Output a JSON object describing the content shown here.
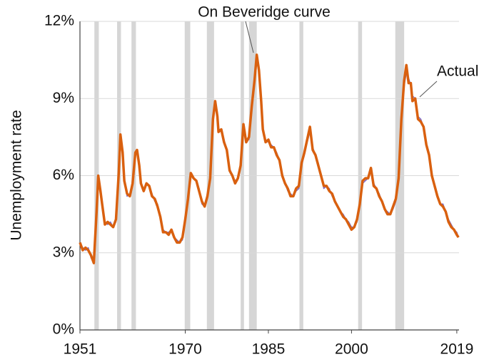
{
  "chart_data": {
    "type": "line",
    "ylabel": "Unemployment rate",
    "x": [
      1951.0,
      1951.5,
      1952.0,
      1952.5,
      1953.0,
      1953.5,
      1954.0,
      1954.3,
      1954.7,
      1955.0,
      1955.5,
      1956.0,
      1956.5,
      1957.0,
      1957.5,
      1958.0,
      1958.3,
      1958.7,
      1959.0,
      1959.5,
      1960.0,
      1960.5,
      1961.0,
      1961.3,
      1961.7,
      1962.0,
      1962.5,
      1963.0,
      1963.5,
      1964.0,
      1964.5,
      1965.0,
      1965.5,
      1966.0,
      1966.5,
      1967.0,
      1967.5,
      1968.0,
      1968.5,
      1969.0,
      1969.5,
      1970.0,
      1970.5,
      1971.0,
      1971.5,
      1972.0,
      1972.5,
      1973.0,
      1973.5,
      1974.0,
      1974.5,
      1975.0,
      1975.4,
      1975.8,
      1976.0,
      1976.5,
      1977.0,
      1977.5,
      1978.0,
      1978.5,
      1979.0,
      1979.5,
      1980.0,
      1980.5,
      1981.0,
      1981.5,
      1982.0,
      1982.5,
      1982.9,
      1983.3,
      1983.7,
      1984.0,
      1984.5,
      1985.0,
      1985.5,
      1986.0,
      1986.5,
      1987.0,
      1987.5,
      1988.0,
      1988.5,
      1989.0,
      1989.5,
      1990.0,
      1990.5,
      1991.0,
      1991.5,
      1992.0,
      1992.5,
      1993.0,
      1993.5,
      1994.0,
      1994.5,
      1995.0,
      1995.5,
      1996.0,
      1996.5,
      1997.0,
      1997.5,
      1998.0,
      1998.5,
      1999.0,
      1999.5,
      2000.0,
      2000.5,
      2001.0,
      2001.5,
      2002.0,
      2002.5,
      2003.0,
      2003.5,
      2004.0,
      2004.5,
      2005.0,
      2005.5,
      2006.0,
      2006.5,
      2007.0,
      2007.5,
      2008.0,
      2008.5,
      2009.0,
      2009.5,
      2009.9,
      2010.3,
      2010.7,
      2011.0,
      2011.5,
      2012.0,
      2012.5,
      2013.0,
      2013.5,
      2014.0,
      2014.5,
      2015.0,
      2015.5,
      2016.0,
      2016.5,
      2017.0,
      2017.5,
      2018.0,
      2018.5,
      2019.0,
      2019.3
    ],
    "series": [
      {
        "name": "Actual",
        "color": "#7b68c8",
        "width": 1.5,
        "values": [
          3.4,
          3.2,
          3.1,
          3.2,
          2.8,
          2.6,
          4.5,
          5.9,
          5.5,
          4.8,
          4.2,
          4.1,
          4.2,
          4.0,
          4.2,
          6.0,
          7.5,
          6.8,
          5.9,
          5.2,
          5.3,
          5.6,
          6.8,
          7.0,
          6.5,
          5.7,
          5.5,
          5.7,
          5.6,
          5.3,
          5.0,
          4.9,
          4.4,
          3.9,
          3.8,
          3.8,
          3.9,
          3.6,
          3.5,
          3.4,
          3.5,
          4.2,
          5.0,
          6.0,
          5.9,
          5.8,
          5.5,
          4.9,
          4.8,
          5.1,
          5.8,
          8.1,
          8.8,
          8.4,
          7.8,
          7.8,
          7.4,
          7.0,
          6.3,
          6.0,
          5.8,
          5.9,
          6.3,
          7.8,
          7.4,
          7.4,
          8.6,
          9.6,
          10.6,
          10.2,
          9.0,
          7.9,
          7.4,
          7.3,
          7.2,
          7.1,
          6.9,
          6.6,
          6.1,
          5.7,
          5.4,
          5.3,
          5.2,
          5.4,
          5.5,
          6.4,
          6.8,
          7.3,
          7.7,
          7.1,
          6.8,
          6.5,
          6.0,
          5.5,
          5.6,
          5.5,
          5.2,
          5.0,
          4.8,
          4.6,
          4.5,
          4.3,
          4.2,
          4.0,
          4.0,
          4.2,
          4.8,
          5.7,
          5.8,
          5.9,
          6.2,
          5.7,
          5.5,
          5.3,
          5.0,
          4.7,
          4.6,
          4.5,
          4.7,
          5.0,
          5.8,
          8.0,
          9.5,
          10.0,
          9.8,
          9.5,
          9.1,
          9.0,
          8.3,
          8.2,
          7.9,
          7.3,
          6.7,
          6.1,
          5.6,
          5.2,
          4.9,
          4.9,
          4.6,
          4.3,
          4.1,
          3.9,
          3.8,
          3.6
        ]
      },
      {
        "name": "On Beveridge curve",
        "color": "#d9600f",
        "width": 3.5,
        "values": [
          3.4,
          3.1,
          3.2,
          3.1,
          2.9,
          2.6,
          4.6,
          6.0,
          5.4,
          4.9,
          4.1,
          4.2,
          4.1,
          4.0,
          4.3,
          6.1,
          7.6,
          6.9,
          5.8,
          5.3,
          5.2,
          5.7,
          6.9,
          7.0,
          6.4,
          5.7,
          5.4,
          5.7,
          5.6,
          5.2,
          5.1,
          4.8,
          4.4,
          3.8,
          3.8,
          3.7,
          3.9,
          3.6,
          3.4,
          3.4,
          3.6,
          4.3,
          5.1,
          6.1,
          5.9,
          5.8,
          5.4,
          5.0,
          4.8,
          5.2,
          5.9,
          8.2,
          8.9,
          8.3,
          7.7,
          7.8,
          7.3,
          7.0,
          6.2,
          6.0,
          5.7,
          5.9,
          6.4,
          8.0,
          7.3,
          7.5,
          8.7,
          9.7,
          10.7,
          10.1,
          8.9,
          7.8,
          7.3,
          7.4,
          7.1,
          7.1,
          6.8,
          6.6,
          6.0,
          5.7,
          5.5,
          5.2,
          5.2,
          5.5,
          5.6,
          6.5,
          6.9,
          7.4,
          7.9,
          7.0,
          6.8,
          6.4,
          6.0,
          5.6,
          5.6,
          5.4,
          5.3,
          5.0,
          4.8,
          4.6,
          4.4,
          4.3,
          4.1,
          3.9,
          4.0,
          4.3,
          4.9,
          5.8,
          5.9,
          5.9,
          6.3,
          5.6,
          5.5,
          5.2,
          5.0,
          4.7,
          4.5,
          4.5,
          4.8,
          5.1,
          5.9,
          8.2,
          9.7,
          10.3,
          9.6,
          9.6,
          8.9,
          9.0,
          8.2,
          8.1,
          7.9,
          7.2,
          6.8,
          6.0,
          5.6,
          5.2,
          4.9,
          4.8,
          4.6,
          4.2,
          4.0,
          3.9,
          3.7,
          3.6
        ]
      }
    ],
    "shaded_periods": [
      [
        1953.6,
        1954.4
      ],
      [
        1957.7,
        1958.4
      ],
      [
        1960.3,
        1961.1
      ],
      [
        1969.9,
        1970.9
      ],
      [
        1973.9,
        1975.2
      ],
      [
        1980.0,
        1980.6
      ],
      [
        1981.5,
        1982.9
      ],
      [
        1990.6,
        1991.3
      ],
      [
        2001.2,
        2001.9
      ],
      [
        2007.9,
        2009.5
      ]
    ],
    "shade_color": "#d6d6d6",
    "xlim": [
      1951,
      2019.4
    ],
    "xticks": [
      1951,
      1970,
      1985,
      2000,
      2019
    ],
    "ylim": [
      0,
      12
    ],
    "yticks": [
      {
        "value": 0,
        "label": "0%"
      },
      {
        "value": 3,
        "label": "3%"
      },
      {
        "value": 6,
        "label": "6%"
      },
      {
        "value": 9,
        "label": "9%"
      },
      {
        "value": 12,
        "label": "12%"
      }
    ],
    "grid": true
  }
}
